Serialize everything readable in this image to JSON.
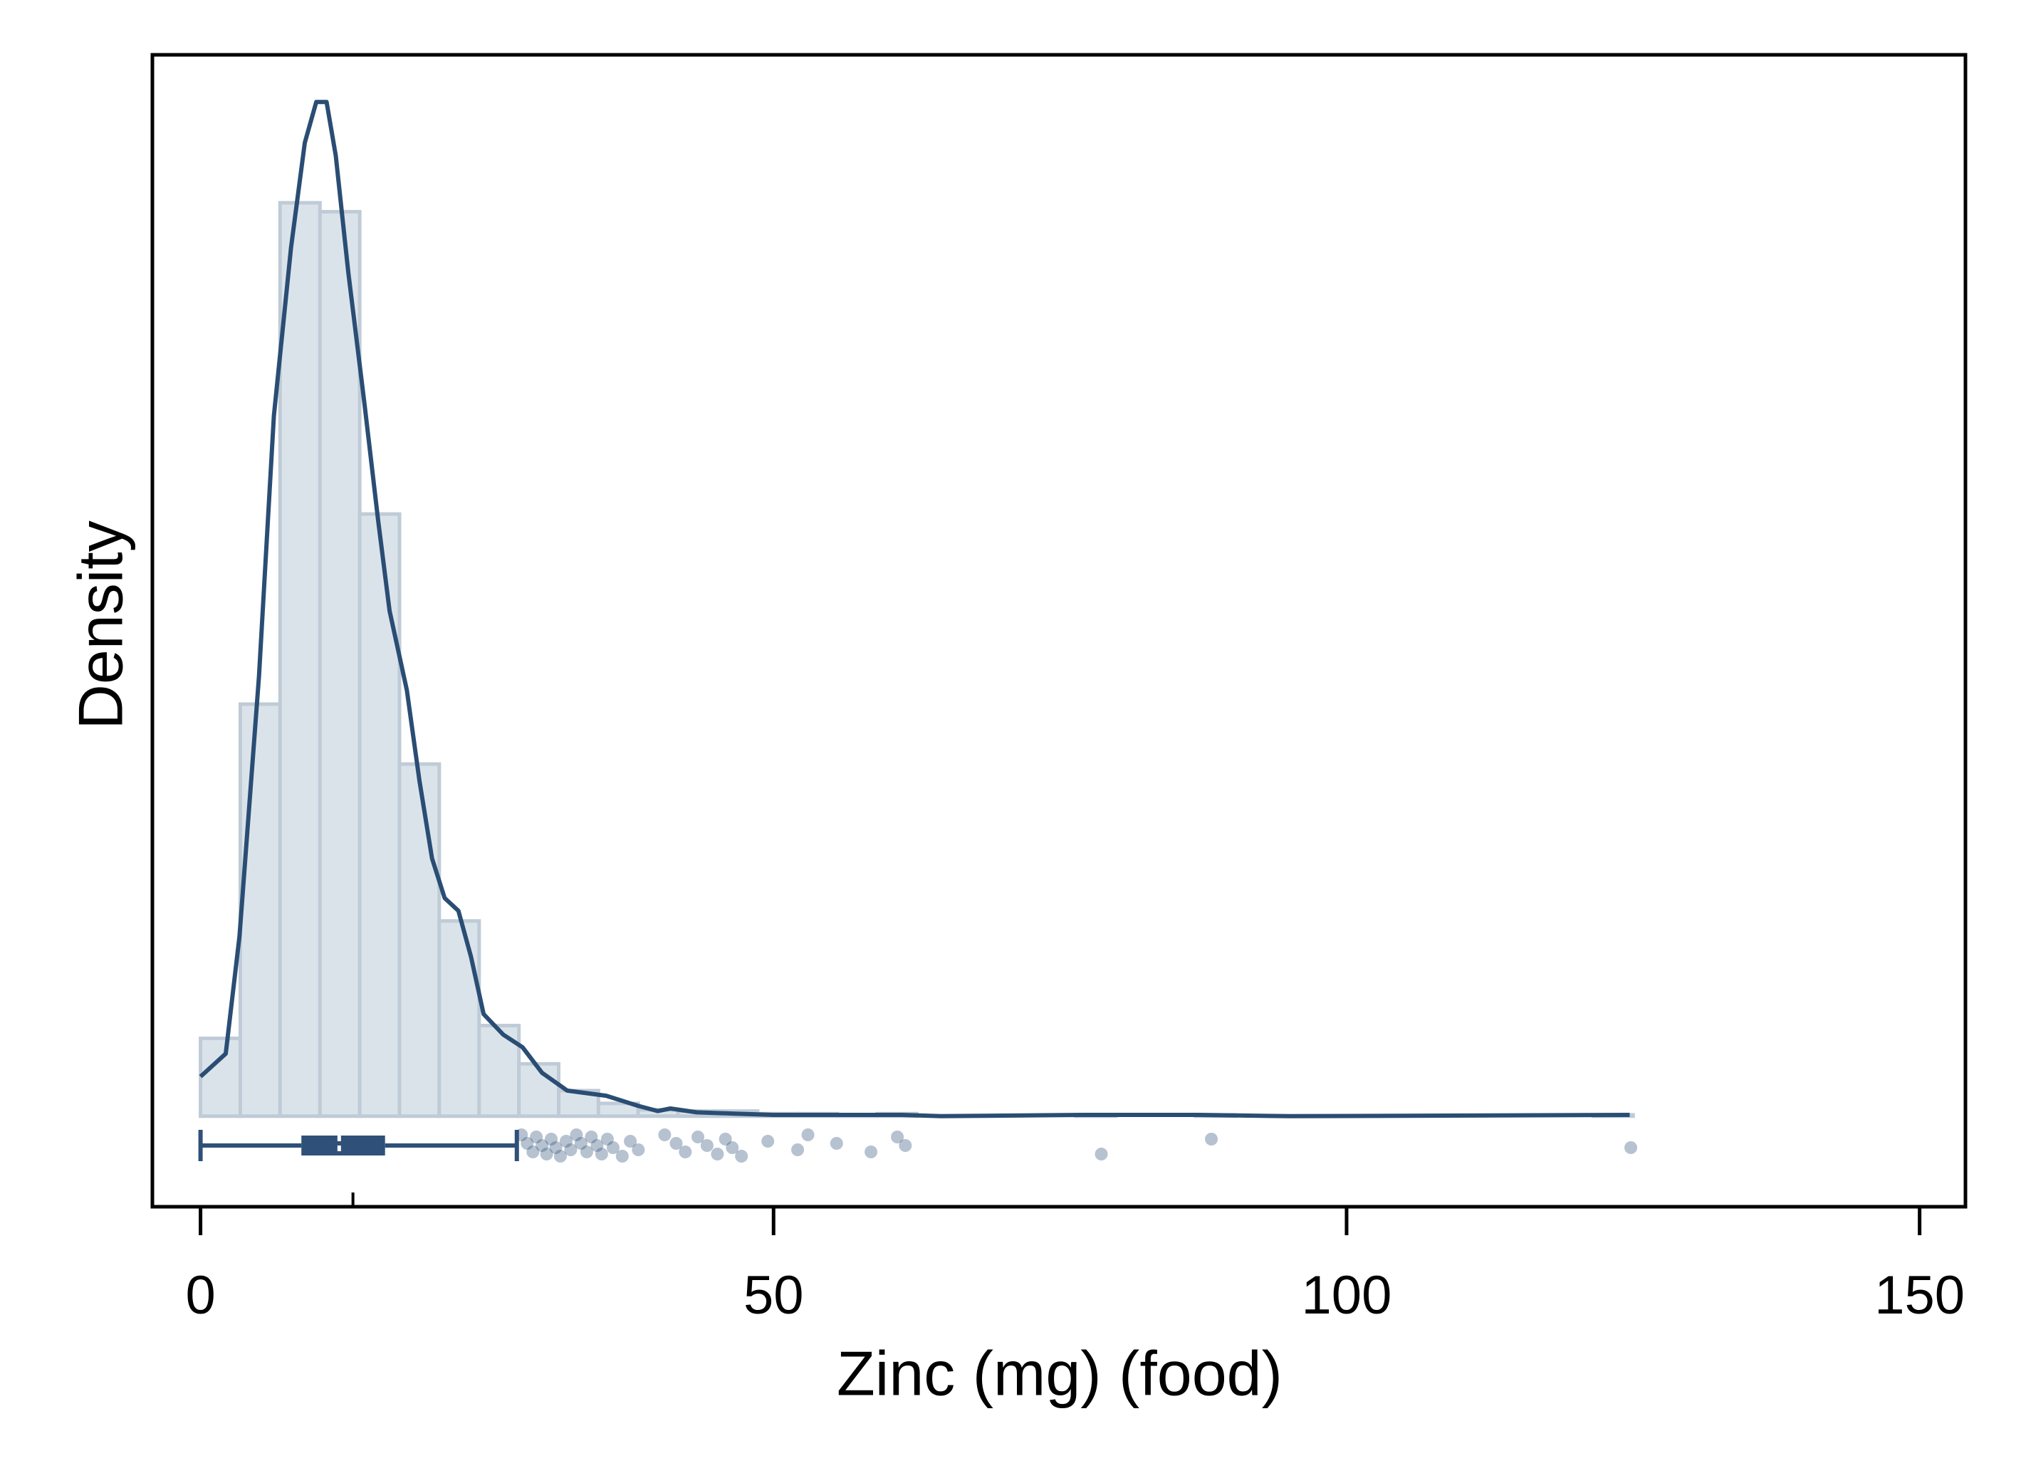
{
  "chart_data": {
    "type": "histogram",
    "x_label": "Zinc (mg) (food)",
    "y_label": "Density",
    "bins": [
      0,
      3.47,
      6.94,
      10.42,
      13.89,
      17.36,
      20.83,
      24.31,
      27.78,
      31.25,
      34.72,
      38.19,
      41.67,
      45.14,
      48.61,
      52.08,
      55.56,
      59.03,
      62.5,
      65.97,
      69.44,
      72.92,
      76.39,
      79.86,
      83.33,
      86.81,
      90.28,
      93.75,
      97.22,
      100.69,
      104.17,
      107.64,
      111.11,
      114.58,
      118.06,
      121.53,
      125
    ],
    "values": [
      0.0061,
      0.0323,
      0.0716,
      0.0709,
      0.0472,
      0.0276,
      0.0153,
      0.0071,
      0.0041,
      0.002,
      0.001,
      0.0005,
      0.0004,
      0.0004,
      0.0002,
      0.0002,
      0.0001,
      0.0002,
      0,
      0,
      0,
      0,
      0.0001,
      0,
      0,
      0.0001,
      0,
      0,
      0,
      0,
      0,
      0,
      0,
      0,
      0,
      0.0001
    ],
    "color": "#dbe3ea",
    "edge_color": "#bfcbd6",
    "density_curve": {
      "color": "#2a4d74",
      "x": [
        0,
        2.2,
        3.4,
        5.1,
        6.4,
        7.9,
        9.1,
        10.1,
        11.0,
        11.8,
        12.9,
        14.3,
        15.5,
        16.5,
        18.0,
        19.1,
        20.2,
        21.3,
        22.5,
        23.6,
        24.7,
        26.4,
        28.1,
        29.8,
        32.0,
        35.4,
        38.2,
        39.9,
        41.0,
        43.3,
        46.6,
        50.0,
        61.2,
        64.6,
        77.0,
        87.1,
        95.0,
        124.7
      ],
      "y": [
        0.0031,
        0.0049,
        0.0141,
        0.0345,
        0.0549,
        0.0681,
        0.0763,
        0.0795,
        0.0795,
        0.0753,
        0.0661,
        0.0559,
        0.0467,
        0.0396,
        0.0334,
        0.0263,
        0.0202,
        0.0171,
        0.0161,
        0.0125,
        0.008,
        0.0064,
        0.0054,
        0.0034,
        0.002,
        0.0016,
        0.0008,
        0.0004,
        0.0006,
        0.0003,
        0.0002,
        0.0001,
        0.0001,
        0,
        0.0001,
        0.0001,
        0,
        0.0001
      ]
    },
    "box": {
      "color": "#2f5078",
      "whisker_low": 0,
      "q1": 8.8,
      "median": 12.1,
      "q3": 16.1,
      "whisker_high": 27.6,
      "mean": 13.3
    },
    "outliers": [
      28,
      28.5,
      29,
      29.3,
      29.8,
      30.2,
      30.6,
      31,
      31.4,
      31.9,
      32.3,
      32.8,
      33.2,
      33.7,
      34.1,
      34.6,
      35,
      35.5,
      36,
      36.8,
      37.5,
      38.2,
      40.5,
      41.5,
      42.3,
      43.4,
      44.2,
      45.1,
      45.8,
      46.4,
      47.2,
      49.5,
      52.1,
      53,
      55.5,
      58.5,
      60.8,
      61.5,
      78.6,
      88.2,
      124.8
    ],
    "xlim": [
      -4.2,
      154
    ],
    "xticks": [
      0,
      50,
      100,
      150
    ],
    "ylim": [
      -0.0071,
      0.0832
    ]
  }
}
